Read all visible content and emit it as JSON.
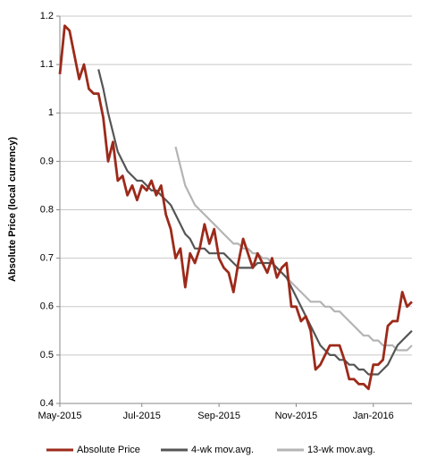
{
  "chart_data": {
    "type": "line",
    "y_label": "Absolute Price (local currency)",
    "categories": [
      "May-2015",
      null,
      null,
      null,
      null,
      null,
      null,
      null,
      null,
      null,
      null,
      null,
      null,
      null,
      null,
      null,
      null,
      "Jul-2015",
      null,
      null,
      null,
      null,
      null,
      null,
      null,
      null,
      null,
      null,
      null,
      null,
      null,
      null,
      null,
      "Sep-2015",
      null,
      null,
      null,
      null,
      null,
      null,
      null,
      null,
      null,
      null,
      null,
      null,
      null,
      null,
      null,
      "Nov-2015",
      null,
      null,
      null,
      null,
      null,
      null,
      null,
      null,
      null,
      null,
      null,
      null,
      null,
      null,
      null,
      "Jan-2016",
      null,
      null,
      null,
      null,
      null,
      null,
      null,
      null
    ],
    "series": [
      {
        "name": "Absolute Price",
        "color": "#9c2a1a",
        "values": [
          1.08,
          1.18,
          1.17,
          1.12,
          1.07,
          1.1,
          1.05,
          1.04,
          1.04,
          0.99,
          0.9,
          0.94,
          0.86,
          0.87,
          0.83,
          0.85,
          0.82,
          0.85,
          0.84,
          0.86,
          0.83,
          0.85,
          0.79,
          0.76,
          0.7,
          0.72,
          0.64,
          0.71,
          0.69,
          0.72,
          0.77,
          0.73,
          0.76,
          0.7,
          0.68,
          0.67,
          0.63,
          0.69,
          0.74,
          0.71,
          0.68,
          0.71,
          0.69,
          0.67,
          0.7,
          0.66,
          0.68,
          0.69,
          0.6,
          0.6,
          0.57,
          0.58,
          0.55,
          0.47,
          0.48,
          0.5,
          0.52,
          0.52,
          0.52,
          0.49,
          0.45,
          0.45,
          0.44,
          0.44,
          0.43,
          0.48,
          0.48,
          0.49,
          0.56,
          0.57,
          0.57,
          0.63,
          0.6,
          0.61
        ]
      },
      {
        "name": "4-wk mov.avg.",
        "color": "#555555",
        "values": [
          null,
          null,
          null,
          null,
          null,
          null,
          null,
          null,
          1.09,
          1.05,
          1.0,
          0.96,
          0.92,
          0.9,
          0.88,
          0.87,
          0.86,
          0.86,
          0.85,
          0.84,
          0.84,
          0.83,
          0.82,
          0.81,
          0.79,
          0.77,
          0.75,
          0.74,
          0.72,
          0.72,
          0.72,
          0.71,
          0.71,
          0.71,
          0.71,
          0.7,
          0.69,
          0.68,
          0.68,
          0.68,
          0.68,
          0.69,
          0.69,
          0.69,
          0.69,
          0.68,
          0.67,
          0.66,
          0.64,
          0.62,
          0.6,
          0.58,
          0.56,
          0.54,
          0.52,
          0.51,
          0.5,
          0.5,
          0.49,
          0.49,
          0.48,
          0.48,
          0.47,
          0.47,
          0.46,
          0.46,
          0.46,
          0.47,
          0.48,
          0.5,
          0.52,
          0.53,
          0.54,
          0.55
        ]
      },
      {
        "name": "13-wk mov.avg.",
        "color": "#b4b4b4",
        "values": [
          null,
          null,
          null,
          null,
          null,
          null,
          null,
          null,
          null,
          null,
          null,
          null,
          null,
          null,
          null,
          null,
          null,
          null,
          null,
          null,
          null,
          null,
          null,
          null,
          0.93,
          0.89,
          0.85,
          0.83,
          0.81,
          0.8,
          0.79,
          0.78,
          0.77,
          0.76,
          0.75,
          0.74,
          0.73,
          0.73,
          0.72,
          0.72,
          0.71,
          0.71,
          0.7,
          0.7,
          0.69,
          0.68,
          0.67,
          0.66,
          0.65,
          0.64,
          0.63,
          0.62,
          0.61,
          0.61,
          0.61,
          0.6,
          0.6,
          0.59,
          0.59,
          0.58,
          0.57,
          0.56,
          0.55,
          0.54,
          0.54,
          0.53,
          0.53,
          0.52,
          0.52,
          0.52,
          0.51,
          0.51,
          0.51,
          0.52
        ]
      }
    ],
    "ylim": [
      0.4,
      1.2
    ],
    "yticks": [
      0.4,
      0.5,
      0.6,
      0.7,
      0.8,
      0.9,
      1,
      1.1,
      1.2
    ],
    "grid": true,
    "legend": "bottom"
  }
}
